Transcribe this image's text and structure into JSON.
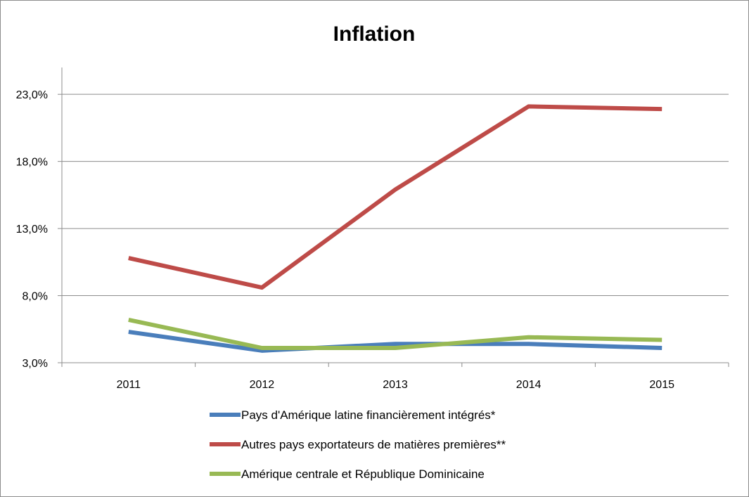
{
  "chart_data": {
    "type": "line",
    "title": "Inflation",
    "categories": [
      "2011",
      "2012",
      "2013",
      "2014",
      "2015"
    ],
    "y_ticks": [
      "3,0%",
      "8,0%",
      "13,0%",
      "18,0%",
      "23,0%"
    ],
    "ylim": [
      3,
      25
    ],
    "grid": true,
    "legend_position": "bottom",
    "series": [
      {
        "name": "Pays d'Amérique latine financièrement intégrés*",
        "color": "#4a7ebb",
        "values": [
          5.3,
          3.9,
          4.4,
          4.4,
          4.1
        ]
      },
      {
        "name": "Autres pays exportateurs de matières premières**",
        "color": "#be4b48",
        "values": [
          10.8,
          8.6,
          15.9,
          22.1,
          21.9
        ]
      },
      {
        "name": "Amérique centrale et République Dominicaine",
        "color": "#98b954",
        "values": [
          6.2,
          4.1,
          4.1,
          4.9,
          4.7
        ]
      }
    ]
  }
}
